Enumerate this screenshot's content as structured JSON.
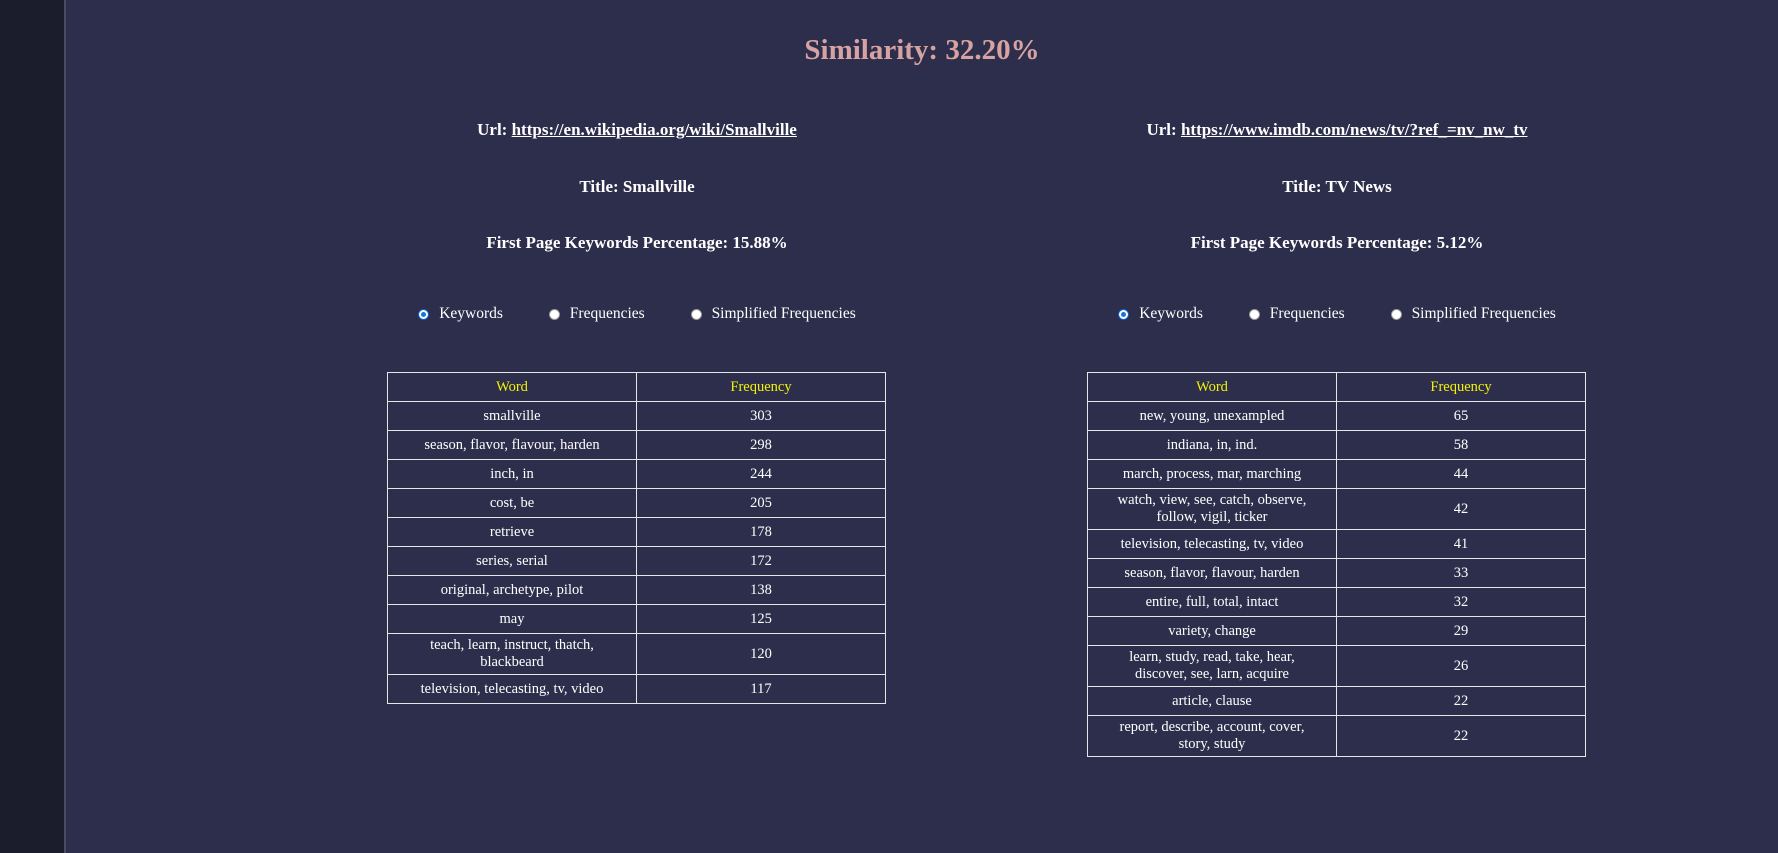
{
  "similarity": {
    "label": "Similarity: 32.20%"
  },
  "left": {
    "url_label": "Url:",
    "url": "https://en.wikipedia.org/wiki/Smallville",
    "title": "Title: Smallville",
    "keywords_pct": "First Page Keywords Percentage: 15.88%",
    "radios": [
      {
        "label": "Keywords",
        "checked": true
      },
      {
        "label": "Frequencies",
        "checked": false
      },
      {
        "label": "Simplified Frequencies",
        "checked": false
      }
    ],
    "table": {
      "headers": [
        "Word",
        "Frequency"
      ],
      "rows": [
        [
          "smallville",
          "303"
        ],
        [
          "season, flavor, flavour, harden",
          "298"
        ],
        [
          "inch, in",
          "244"
        ],
        [
          "cost, be",
          "205"
        ],
        [
          "retrieve",
          "178"
        ],
        [
          "series, serial",
          "172"
        ],
        [
          "original, archetype, pilot",
          "138"
        ],
        [
          "may",
          "125"
        ],
        [
          "teach, learn, instruct, thatch, blackbeard",
          "120"
        ],
        [
          "television, telecasting, tv, video",
          "117"
        ]
      ]
    }
  },
  "right": {
    "url_label": "Url:",
    "url": "https://www.imdb.com/news/tv/?ref_=nv_nw_tv",
    "title": "Title: TV News",
    "keywords_pct": "First Page Keywords Percentage: 5.12%",
    "radios": [
      {
        "label": "Keywords",
        "checked": true
      },
      {
        "label": "Frequencies",
        "checked": false
      },
      {
        "label": "Simplified Frequencies",
        "checked": false
      }
    ],
    "table": {
      "headers": [
        "Word",
        "Frequency"
      ],
      "rows": [
        [
          "new, young, unexampled",
          "65"
        ],
        [
          "indiana, in, ind.",
          "58"
        ],
        [
          "march, process, mar, marching",
          "44"
        ],
        [
          "watch, view, see, catch, observe, follow, vigil, ticker",
          "42"
        ],
        [
          "television, telecasting, tv, video",
          "41"
        ],
        [
          "season, flavor, flavour, harden",
          "33"
        ],
        [
          "entire, full, total, intact",
          "32"
        ],
        [
          "variety, change",
          "29"
        ],
        [
          "learn, study, read, take, hear, discover, see, larn, acquire",
          "26"
        ],
        [
          "article, clause",
          "22"
        ],
        [
          "report, describe, account, cover, story, study",
          "22"
        ]
      ]
    }
  }
}
